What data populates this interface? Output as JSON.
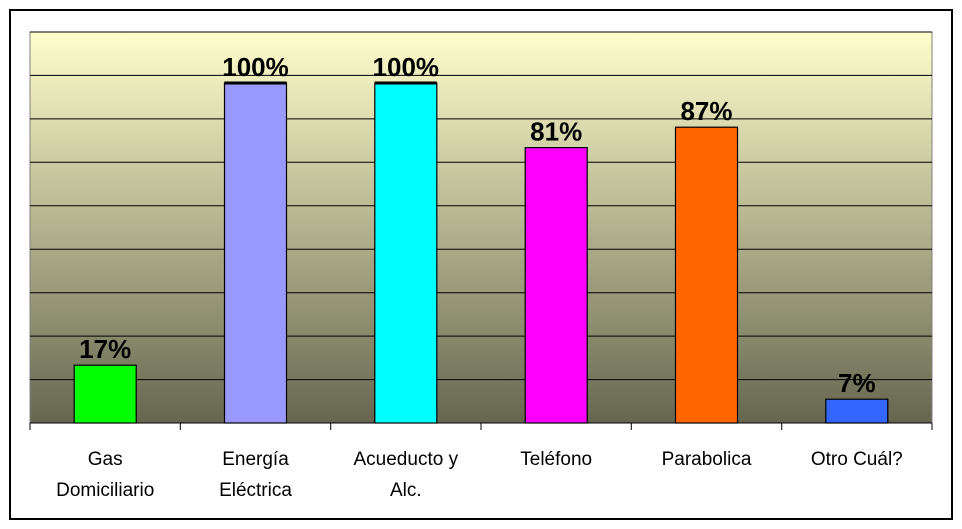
{
  "chart_data": {
    "type": "bar",
    "categories": [
      [
        "Gas",
        "Domiciliario"
      ],
      [
        "Energía",
        "Eléctrica"
      ],
      [
        "Acueducto y",
        "Alc."
      ],
      [
        "Teléfono"
      ],
      [
        "Parabolica"
      ],
      [
        "Otro Cuál?"
      ]
    ],
    "values": [
      17,
      100,
      100,
      81,
      87,
      7
    ],
    "data_labels": [
      "17%",
      "100%",
      "100%",
      "81%",
      "87%",
      "7%"
    ],
    "bar_colors": [
      "#00ff00",
      "#9999ff",
      "#00ffff",
      "#ff00ff",
      "#ff6600",
      "#3366ff"
    ],
    "ylim": [
      0,
      115
    ],
    "grid": true,
    "plot_background": {
      "top": "#ffffcc",
      "bottom": "#666650"
    },
    "title": "",
    "xlabel": "",
    "ylabel": ""
  }
}
